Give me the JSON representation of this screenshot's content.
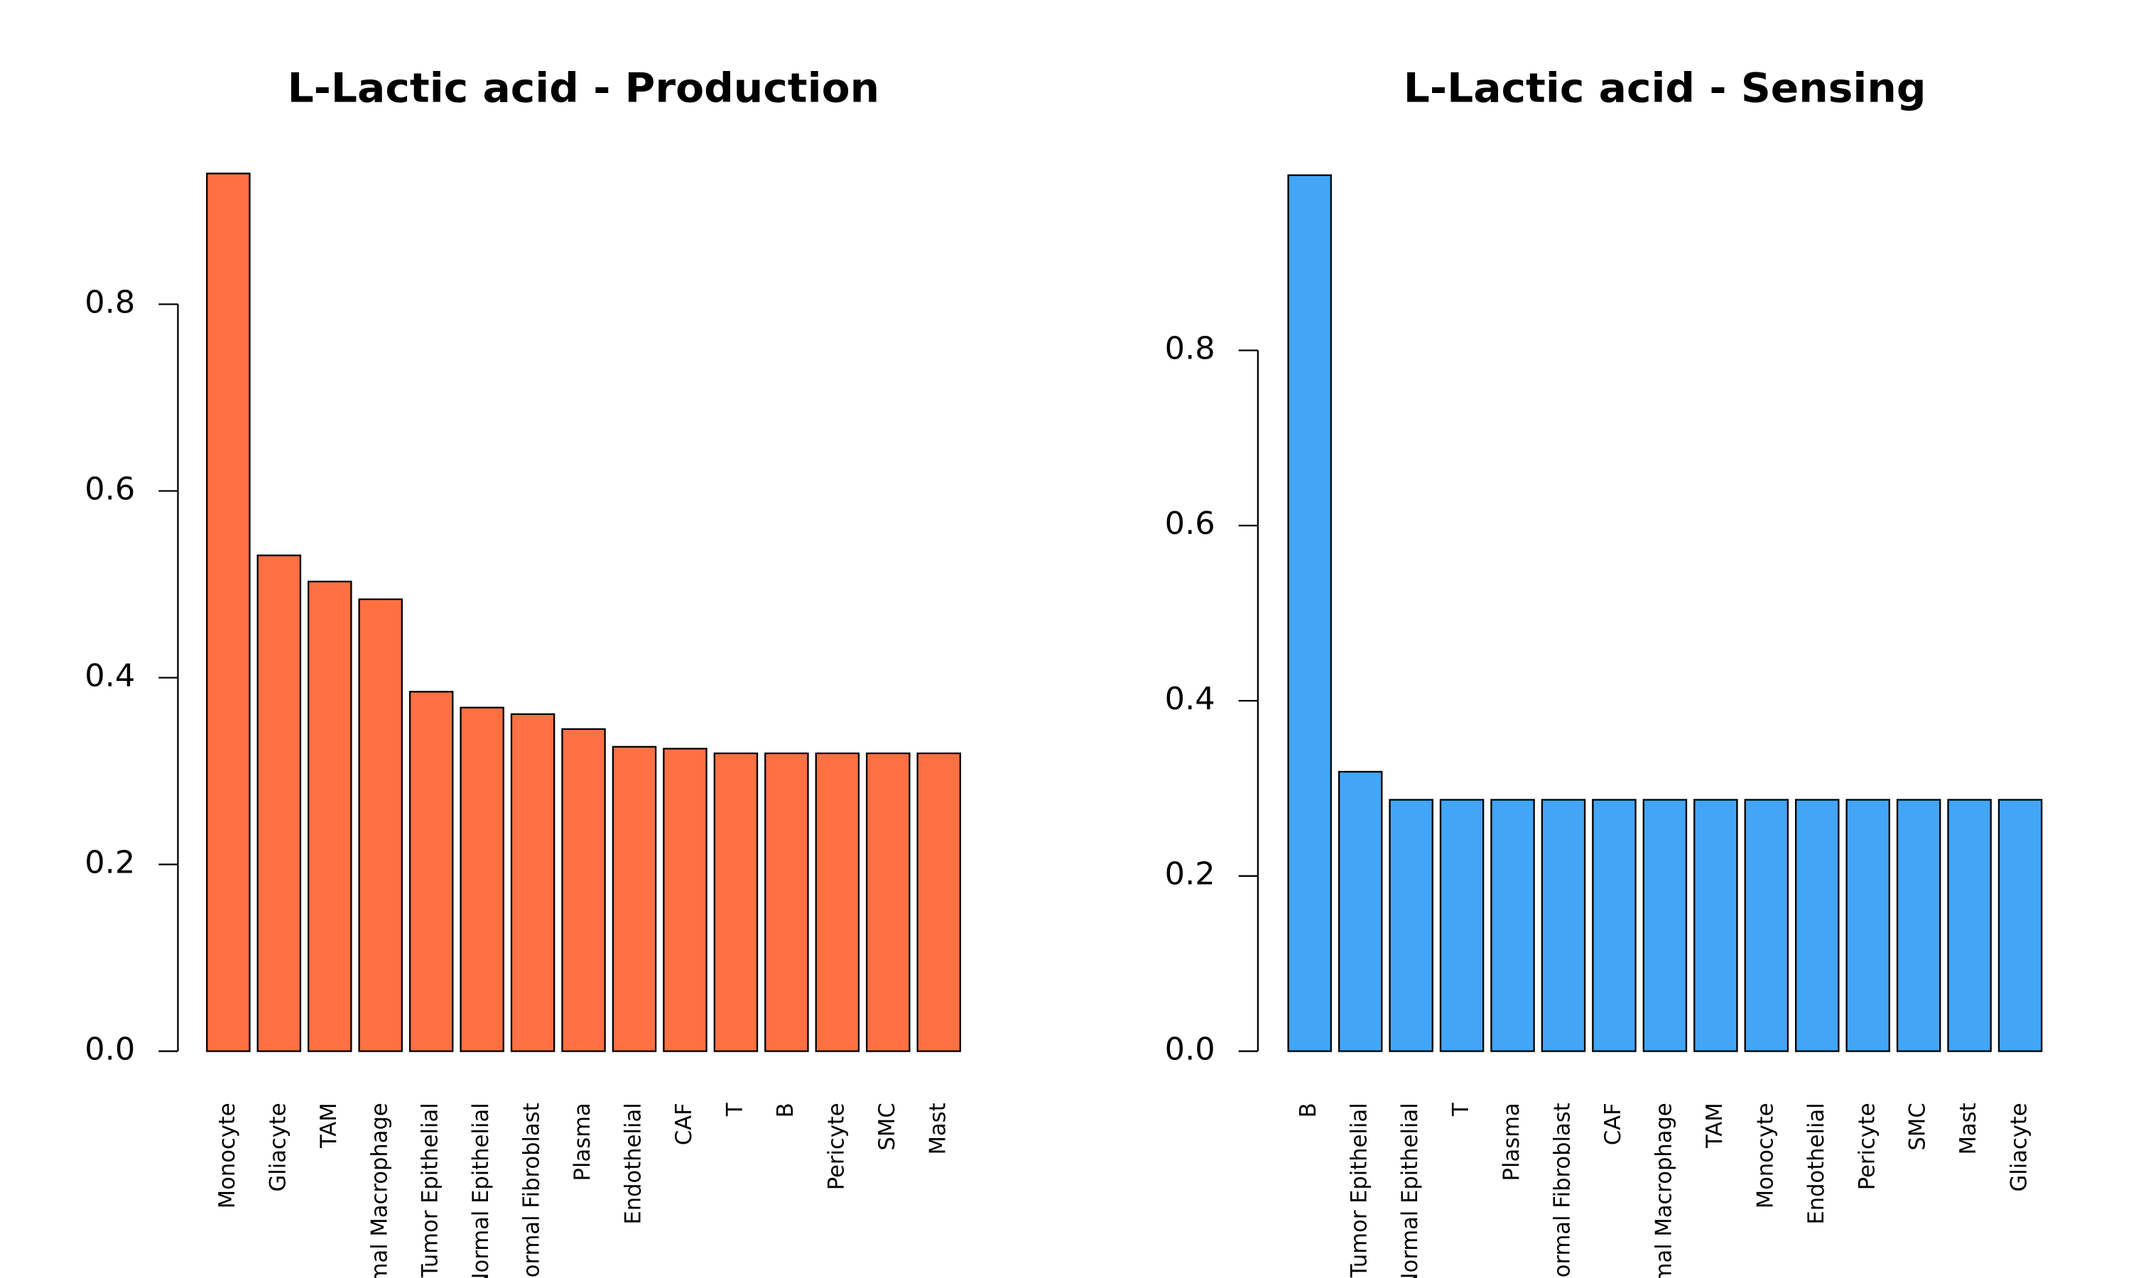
{
  "chart_data": [
    {
      "type": "bar",
      "title": "L-Lactic acid - Production",
      "xlabel": "",
      "ylabel": "",
      "ylim": [
        0,
        0.94
      ],
      "yticks": [
        "0.0",
        "0.2",
        "0.4",
        "0.6",
        "0.8"
      ],
      "color": "#FF7043",
      "categories": [
        "Monocyte",
        "Gliacyte",
        "TAM",
        "Normal Macrophage",
        "Tumor Epithelial",
        "Normal Epithelial",
        "Normal Fibroblast",
        "Plasma",
        "Endothelial",
        "CAF",
        "T",
        "B",
        "Pericyte",
        "SMC",
        "Mast"
      ],
      "values": [
        0.94,
        0.531,
        0.503,
        0.484,
        0.385,
        0.368,
        0.361,
        0.345,
        0.326,
        0.324,
        0.319,
        0.319,
        0.319,
        0.319,
        0.319
      ]
    },
    {
      "type": "bar",
      "title": "L-Lactic acid - Sensing",
      "xlabel": "",
      "ylabel": "",
      "ylim": [
        0,
        1.0
      ],
      "yticks": [
        "0.0",
        "0.2",
        "0.4",
        "0.6",
        "0.8"
      ],
      "color": "#42A5F5",
      "categories": [
        "B",
        "Tumor Epithelial",
        "Normal Epithelial",
        "T",
        "Plasma",
        "Normal Fibroblast",
        "CAF",
        "Normal Macrophage",
        "TAM",
        "Monocyte",
        "Endothelial",
        "Pericyte",
        "SMC",
        "Mast",
        "Gliacyte"
      ],
      "values": [
        1.0,
        0.319,
        0.287,
        0.287,
        0.287,
        0.287,
        0.287,
        0.287,
        0.287,
        0.287,
        0.287,
        0.287,
        0.287,
        0.287,
        0.287
      ]
    }
  ]
}
